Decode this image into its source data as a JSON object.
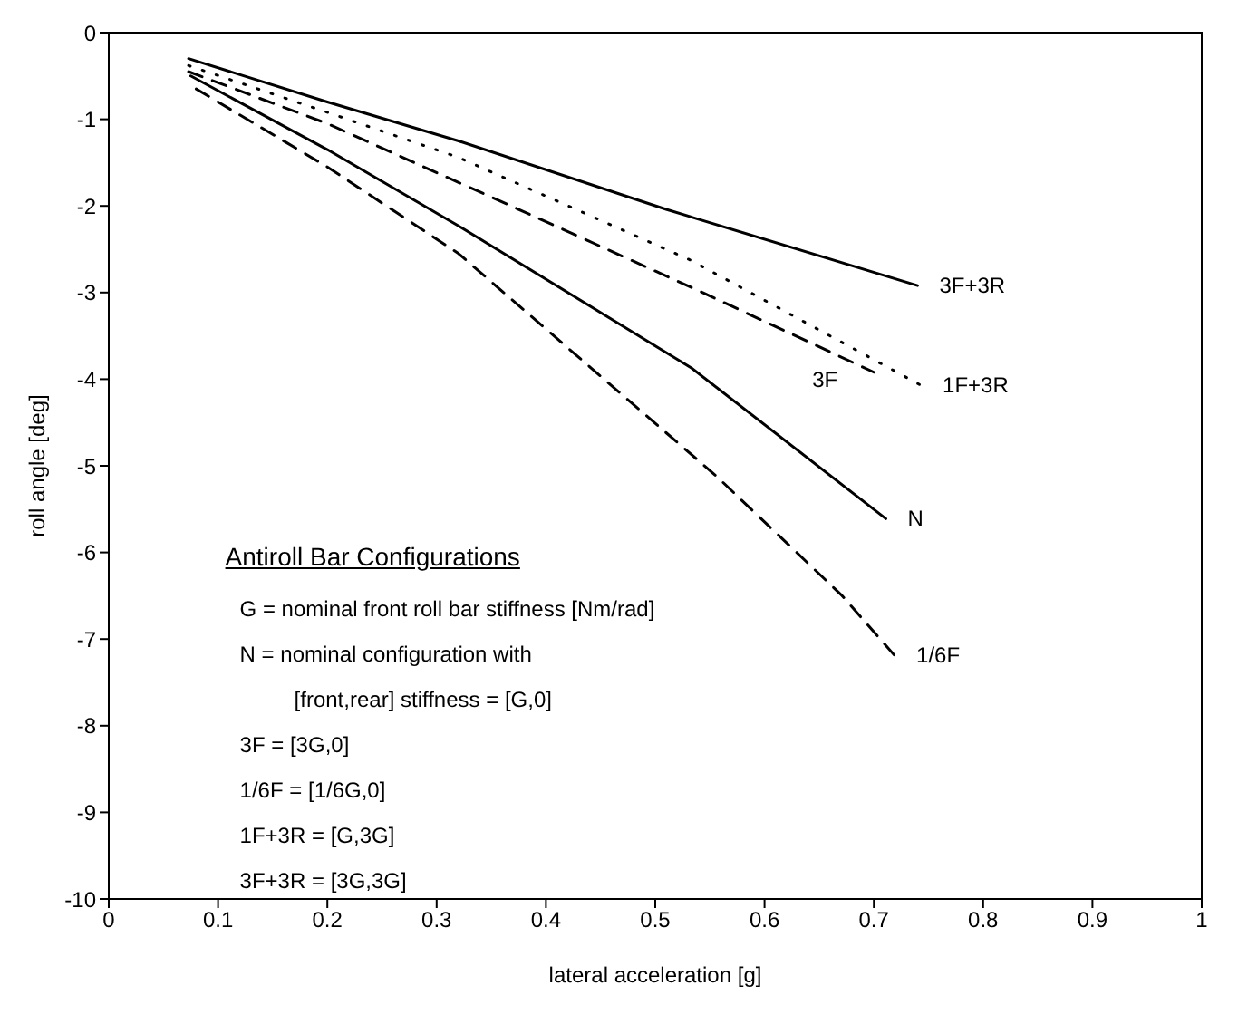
{
  "chart_data": {
    "type": "line",
    "xlabel": "lateral acceleration [g]",
    "ylabel": "roll angle [deg]",
    "xlim": [
      0,
      1
    ],
    "ylim": [
      -10,
      0
    ],
    "xticks": [
      0,
      0.1,
      0.2,
      0.3,
      0.4,
      0.5,
      0.6,
      0.7,
      0.8,
      0.9,
      1
    ],
    "yticks": [
      -10,
      -9,
      -8,
      -7,
      -6,
      -5,
      -4,
      -3,
      -2,
      -1,
      0
    ],
    "grid": false,
    "legend": false,
    "marker": "none",
    "series": [
      {
        "name": "3F+3R",
        "color": "#000000",
        "line_style": "solid",
        "x": [
          0.073,
          0.2,
          0.32,
          0.51,
          0.74
        ],
        "values": [
          -0.3,
          -0.8,
          -1.25,
          -2.04,
          -2.92
        ]
      },
      {
        "name": "1F+3R",
        "color": "#000000",
        "line_style": "dotted",
        "x": [
          0.073,
          0.2,
          0.32,
          0.533,
          0.743
        ],
        "values": [
          -0.38,
          -0.92,
          -1.44,
          -2.63,
          -4.07
        ]
      },
      {
        "name": "3F",
        "color": "#000000",
        "line_style": "dashed",
        "x": [
          0.073,
          0.2,
          0.375,
          0.533,
          0.7
        ],
        "values": [
          -0.45,
          -1.05,
          -2.04,
          -2.94,
          -3.92
        ]
      },
      {
        "name": "N",
        "color": "#000000",
        "line_style": "solid",
        "x": [
          0.075,
          0.2,
          0.32,
          0.533,
          0.711
        ],
        "values": [
          -0.5,
          -1.35,
          -2.23,
          -3.87,
          -5.61
        ]
      },
      {
        "name": "1/6F",
        "color": "#000000",
        "line_style": "dashed",
        "x": [
          0.08,
          0.2,
          0.32,
          0.556,
          0.671,
          0.719
        ],
        "values": [
          -0.65,
          -1.55,
          -2.55,
          -5.12,
          -6.5,
          -7.19
        ]
      }
    ],
    "annotations": [
      "Antiroll Bar Configurations",
      "G = nominal front roll bar stiffness [Nm/rad]",
      "N = nominal configuration with",
      "[front,rear] stiffness = [G,0]",
      "3F = [3G,0]",
      "1/6F = [1/6G,0]",
      "1F+3R = [G,3G]",
      "3F+3R = [3G,3G]"
    ]
  }
}
